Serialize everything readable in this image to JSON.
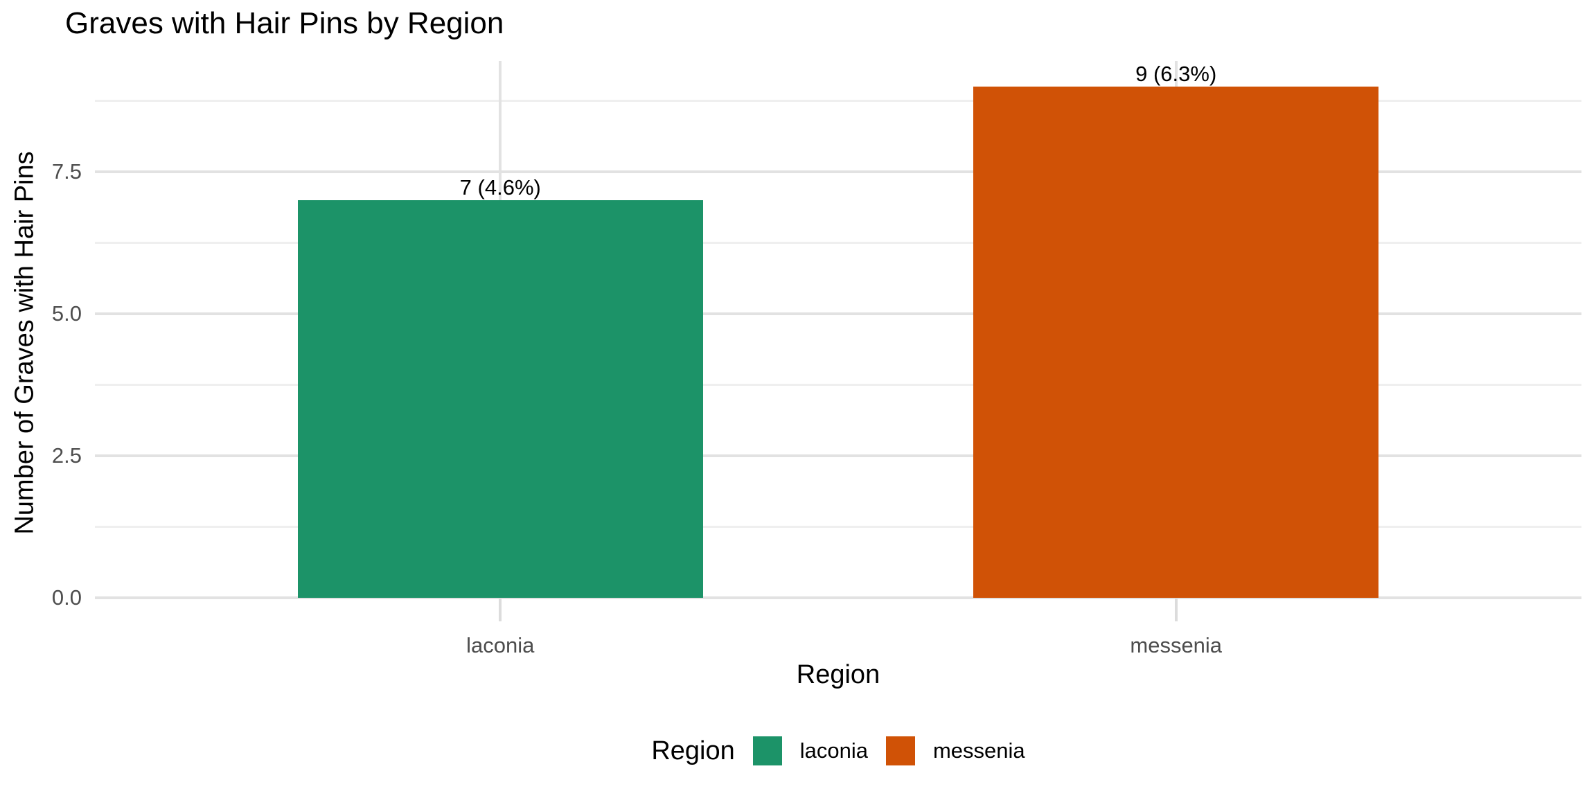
{
  "chart_data": {
    "type": "bar",
    "title": "Graves with Hair Pins by Region",
    "xlabel": "Region",
    "ylabel": "Number of Graves with Hair Pins",
    "categories": [
      "laconia",
      "messenia"
    ],
    "values": [
      7,
      9
    ],
    "bar_labels": [
      "7 (4.6%)",
      "9 (6.3%)"
    ],
    "yticks": [
      0.0,
      2.5,
      5.0,
      7.5
    ],
    "ytick_labels": [
      "0.0",
      "2.5",
      "5.0",
      "7.5"
    ],
    "ylim": [
      0,
      9.45
    ],
    "grid": "major and minor horizontal, major vertical at category centers",
    "legend": {
      "title": "Region",
      "position": "bottom",
      "entries": [
        {
          "label": "laconia",
          "color": "#1C9368"
        },
        {
          "label": "messenia",
          "color": "#D05206"
        }
      ]
    },
    "style_colors": {
      "grid_major": "#E2E2E2",
      "grid_minor": "#EFEFEF",
      "axis_tick": "#DCDCDC",
      "axis_text": "#4D4D4D",
      "title_text": "#000000"
    }
  }
}
